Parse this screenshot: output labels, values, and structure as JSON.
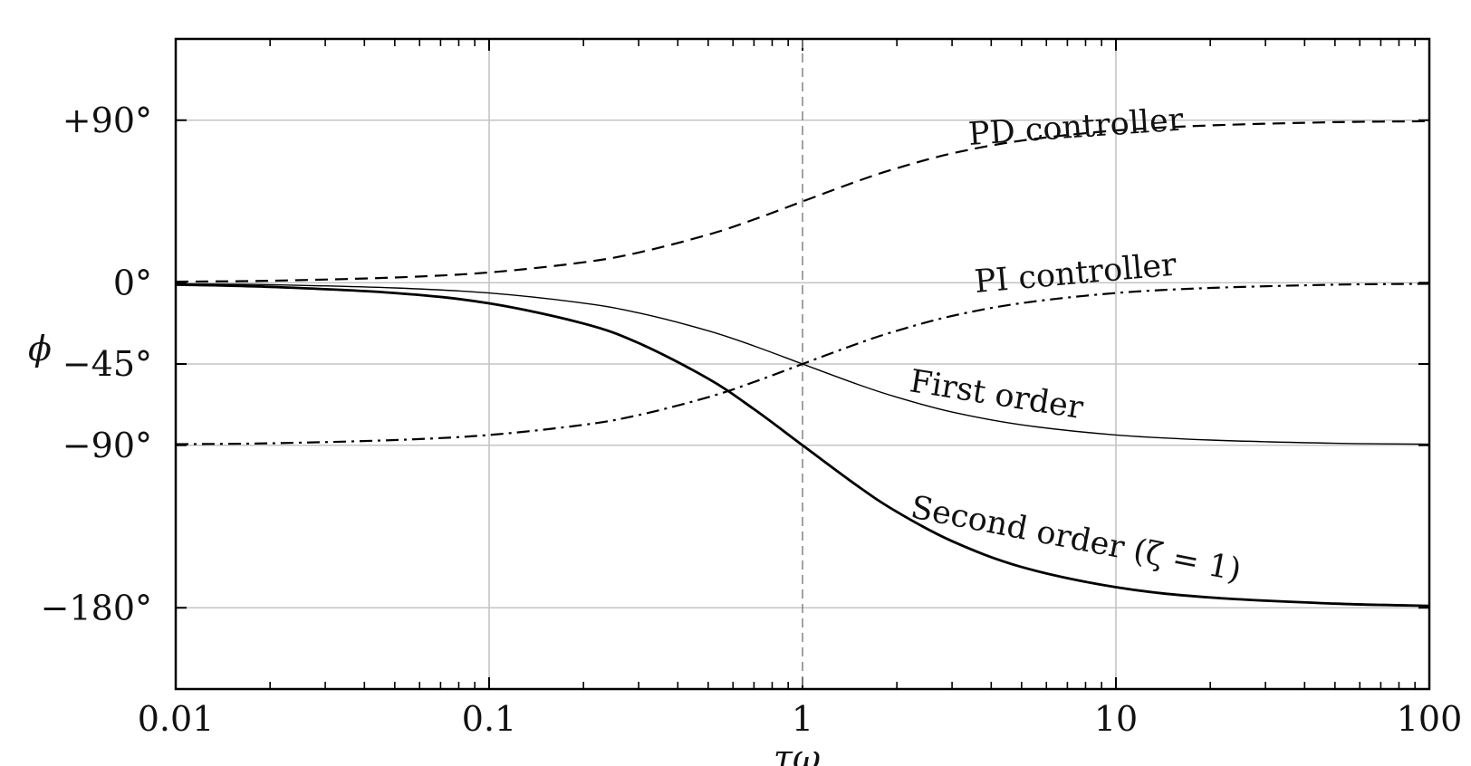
{
  "chart_data": {
    "type": "line",
    "x_scale": "log",
    "xlim": [
      0.01,
      100
    ],
    "ylim": [
      -225,
      135
    ],
    "grid": true,
    "xlabel": "τω",
    "ylabel": "ϕ",
    "xticks": [
      {
        "value": 0.01,
        "label": "0.01"
      },
      {
        "value": 0.1,
        "label": "0.1"
      },
      {
        "value": 1,
        "label": "1"
      },
      {
        "value": 10,
        "label": "10"
      },
      {
        "value": 100,
        "label": "100"
      }
    ],
    "yticks": [
      {
        "value": 90,
        "label": "+90°"
      },
      {
        "value": 0,
        "label": "0°"
      },
      {
        "value": -45,
        "label": "−45°"
      },
      {
        "value": -90,
        "label": "−90°"
      },
      {
        "value": -180,
        "label": "−180°"
      }
    ],
    "reference_line_x": 1,
    "series": [
      {
        "name": "PD controller",
        "style": "dashed",
        "x": [
          0.01,
          0.02,
          0.05,
          0.1,
          0.2,
          0.3,
          0.5,
          0.7,
          1,
          1.5,
          2,
          3,
          5,
          10,
          20,
          50,
          100
        ],
        "y": [
          0.6,
          1.1,
          2.9,
          5.7,
          11.3,
          16.7,
          26.6,
          35.0,
          45.0,
          56.3,
          63.4,
          71.6,
          78.7,
          84.3,
          87.1,
          88.9,
          89.4
        ]
      },
      {
        "name": "PI controller",
        "style": "dashdot",
        "x": [
          0.01,
          0.02,
          0.05,
          0.1,
          0.2,
          0.3,
          0.5,
          0.7,
          1,
          1.5,
          2,
          3,
          5,
          10,
          20,
          50,
          100
        ],
        "y": [
          -89.4,
          -88.9,
          -87.1,
          -84.3,
          -78.7,
          -73.3,
          -63.4,
          -55.0,
          -45.0,
          -33.7,
          -26.6,
          -18.4,
          -11.3,
          -5.7,
          -2.9,
          -1.1,
          -0.6
        ]
      },
      {
        "name": "First order",
        "style": "solid-thin",
        "x": [
          0.01,
          0.02,
          0.05,
          0.1,
          0.2,
          0.3,
          0.5,
          0.7,
          1,
          1.5,
          2,
          3,
          5,
          10,
          20,
          50,
          100
        ],
        "y": [
          -0.6,
          -1.1,
          -2.9,
          -5.7,
          -11.3,
          -16.7,
          -26.6,
          -35.0,
          -45.0,
          -56.3,
          -63.4,
          -71.6,
          -78.7,
          -84.3,
          -87.1,
          -88.9,
          -89.4
        ]
      },
      {
        "name": "Second order (ζ = 1)",
        "style": "solid-thick",
        "x": [
          0.01,
          0.02,
          0.05,
          0.1,
          0.2,
          0.3,
          0.5,
          0.7,
          1,
          1.5,
          2,
          3,
          5,
          10,
          20,
          50,
          100
        ],
        "y": [
          -1.1,
          -2.3,
          -5.7,
          -11.4,
          -22.6,
          -33.4,
          -53.1,
          -70.0,
          -90.0,
          -112.6,
          -126.9,
          -143.1,
          -157.4,
          -168.6,
          -174.3,
          -177.7,
          -178.9
        ]
      }
    ],
    "annotations": [
      {
        "text": "PD controller",
        "series": "PD controller"
      },
      {
        "text": "PI controller",
        "series": "PI controller"
      },
      {
        "text": "First order",
        "series": "First order"
      },
      {
        "text": "Second order (ζ = 1)",
        "series": "Second order (ζ = 1)"
      }
    ]
  }
}
